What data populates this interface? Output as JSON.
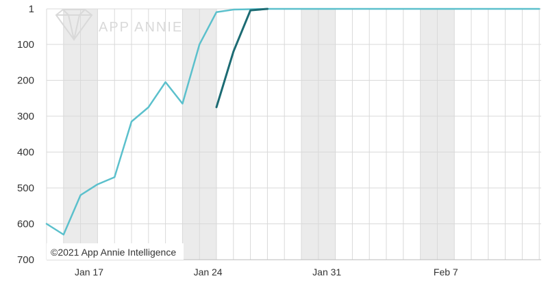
{
  "chart_data": {
    "type": "line",
    "title": "",
    "xlabel": "",
    "ylabel": "",
    "y_axis": {
      "inverted": true,
      "ylim": [
        1,
        700
      ],
      "ticks": [
        "1",
        "100",
        "200",
        "300",
        "400",
        "500",
        "600",
        "700"
      ]
    },
    "x_axis": {
      "start": "Jan 15",
      "end": "Feb 13",
      "tick_labels": [
        "Jan 17",
        "Jan 24",
        "Jan 31",
        "Feb 7"
      ]
    },
    "weekend_shading": [
      "Jan 16",
      "Jan 17",
      "Jan 23",
      "Jan 24",
      "Jan 30",
      "Jan 31",
      "Feb 6",
      "Feb 7"
    ],
    "grid": true,
    "legend": "none",
    "series": [
      {
        "color": "#5bc0cc",
        "x": [
          "Jan 15",
          "Jan 16",
          "Jan 17",
          "Jan 18",
          "Jan 19",
          "Jan 20",
          "Jan 21",
          "Jan 22",
          "Jan 23",
          "Jan 24",
          "Jan 25",
          "Jan 26",
          "Jan 27",
          "Jan 28",
          "Jan 29",
          "Jan 30",
          "Jan 31",
          "Feb 1",
          "Feb 2",
          "Feb 3",
          "Feb 4",
          "Feb 5",
          "Feb 6",
          "Feb 7",
          "Feb 8",
          "Feb 9",
          "Feb 10",
          "Feb 11",
          "Feb 12",
          "Feb 13"
        ],
        "values": [
          600,
          630,
          520,
          490,
          470,
          315,
          275,
          205,
          265,
          100,
          10,
          3,
          2,
          1,
          1,
          1,
          1,
          1,
          1,
          1,
          1,
          1,
          1,
          1,
          1,
          1,
          1,
          1,
          1,
          1
        ]
      },
      {
        "color": "#1c6b73",
        "x": [
          "Jan 25",
          "Jan 26",
          "Jan 27",
          "Jan 28"
        ],
        "values": [
          275,
          120,
          5,
          1
        ]
      }
    ]
  },
  "watermark": {
    "text": "APP ANNIE"
  },
  "copyright": "©2021 App Annie Intelligence",
  "colors": {
    "grid": "#d9d9d9",
    "shade": "#ebebeb",
    "axis_text": "#333333"
  }
}
